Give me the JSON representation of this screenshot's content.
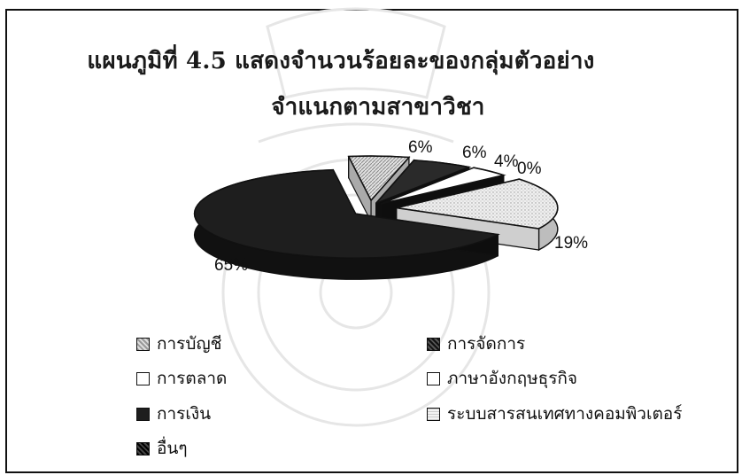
{
  "chart_data": {
    "type": "pie",
    "title": "แผนภูมิที่ 4.5 แสดงจำนวนร้อยละของกลุ่มตัวอย่าง",
    "subtitle": "จำแนกตามสาขาวิชา",
    "slices": [
      {
        "name": "การบัญชี",
        "value": 6,
        "label": "6%",
        "color": "#bdbdbd"
      },
      {
        "name": "การจัดการ",
        "value": 6,
        "label": "6%",
        "color": "#2a2a2a"
      },
      {
        "name": "การตลาด",
        "value": 4,
        "label": "4%",
        "color": "#ffffff"
      },
      {
        "name": "ภาษาอังกฤษธุรกิจ",
        "value": 0,
        "label": "0%",
        "color": "#ffffff"
      },
      {
        "name": "ระบบสารสนเทศทางคอมพิวเตอร์",
        "value": 19,
        "label": "19%",
        "color": "#d9d9d9"
      },
      {
        "name": "การเงิน",
        "value": 65,
        "label": "65%",
        "color": "#1e1e1e"
      },
      {
        "name": "อื่นๆ",
        "value": 0,
        "label": "",
        "color": "#3a3a3a"
      }
    ],
    "legend": [
      {
        "name": "การบัญชี",
        "color": "#bdbdbd"
      },
      {
        "name": "การจัดการ",
        "color": "#2a2a2a"
      },
      {
        "name": "การตลาด",
        "color": "#ffffff"
      },
      {
        "name": "ภาษาอังกฤษธุรกิจ",
        "color": "#ffffff"
      },
      {
        "name": "การเงิน",
        "color": "#1e1e1e"
      },
      {
        "name": "ระบบสารสนเทศทางคอมพิวเตอร์",
        "color": "#d9d9d9"
      },
      {
        "name": "อื่นๆ",
        "color": "#3a3a3a"
      }
    ],
    "legend_position": "bottom"
  }
}
